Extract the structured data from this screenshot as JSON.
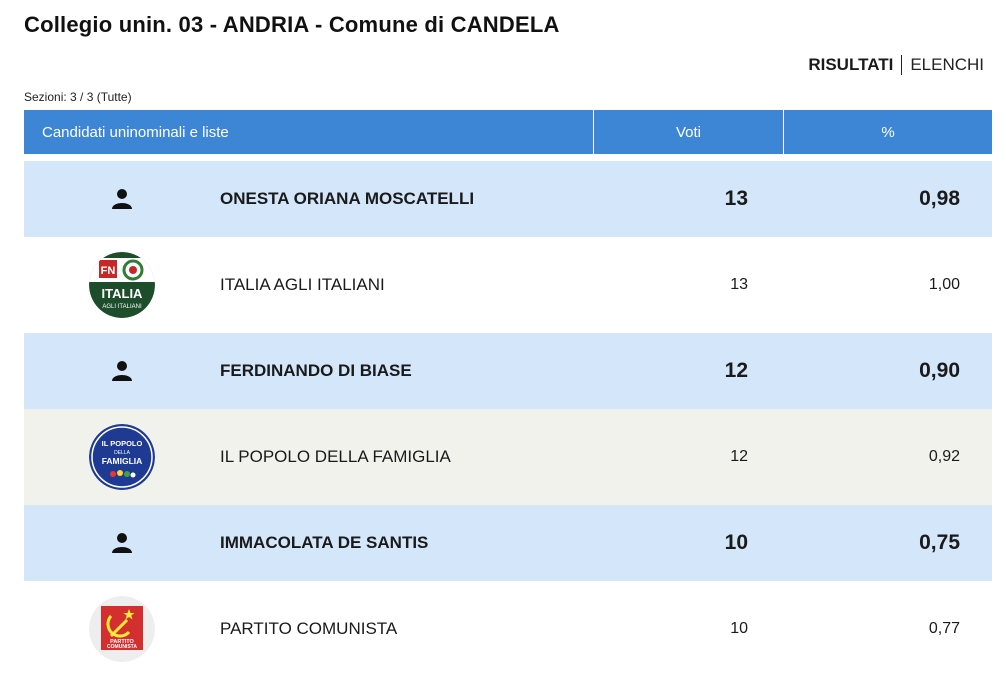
{
  "header": {
    "title": "Collegio unin. 03 - ANDRIA - Comune di CANDELA",
    "tabs": {
      "risultati": "RISULTATI",
      "elenchi": "ELENCHI"
    },
    "sections": "Sezioni: 3 / 3 (Tutte)"
  },
  "table": {
    "columns": {
      "candidates": "Candidati uninominali e liste",
      "votes": "Voti",
      "percent": "%"
    },
    "rows": [
      {
        "kind": "candidate",
        "icon": "person-icon",
        "name": "ONESTA ORIANA MOSCATELLI",
        "votes": "13",
        "percent": "0,98"
      },
      {
        "kind": "list",
        "icon": "italia-agli-italiani-logo",
        "logo_text": [
          "FN",
          "ITALIA",
          "AGLI ITALIANI"
        ],
        "name": "ITALIA AGLI ITALIANI",
        "votes": "13",
        "percent": "1,00"
      },
      {
        "kind": "candidate",
        "icon": "person-icon",
        "name": "FERDINANDO DI BIASE",
        "votes": "12",
        "percent": "0,90"
      },
      {
        "kind": "list",
        "icon": "popolo-della-famiglia-logo",
        "logo_text": [
          "IL POPOLO",
          "DELLA",
          "FAMIGLIA"
        ],
        "name": "IL POPOLO DELLA FAMIGLIA",
        "votes": "12",
        "percent": "0,92"
      },
      {
        "kind": "candidate",
        "icon": "person-icon",
        "name": "IMMACOLATA DE SANTIS",
        "votes": "10",
        "percent": "0,75"
      },
      {
        "kind": "list",
        "icon": "partito-comunista-logo",
        "logo_text": [
          "PARTITO",
          "COMUNISTA"
        ],
        "name": "PARTITO COMUNISTA",
        "votes": "10",
        "percent": "0,77"
      }
    ]
  },
  "colors": {
    "header_blue": "#3d86d6",
    "candidate_row": "#d4e6fa",
    "list_row_shaded": "#f2f2ed"
  }
}
